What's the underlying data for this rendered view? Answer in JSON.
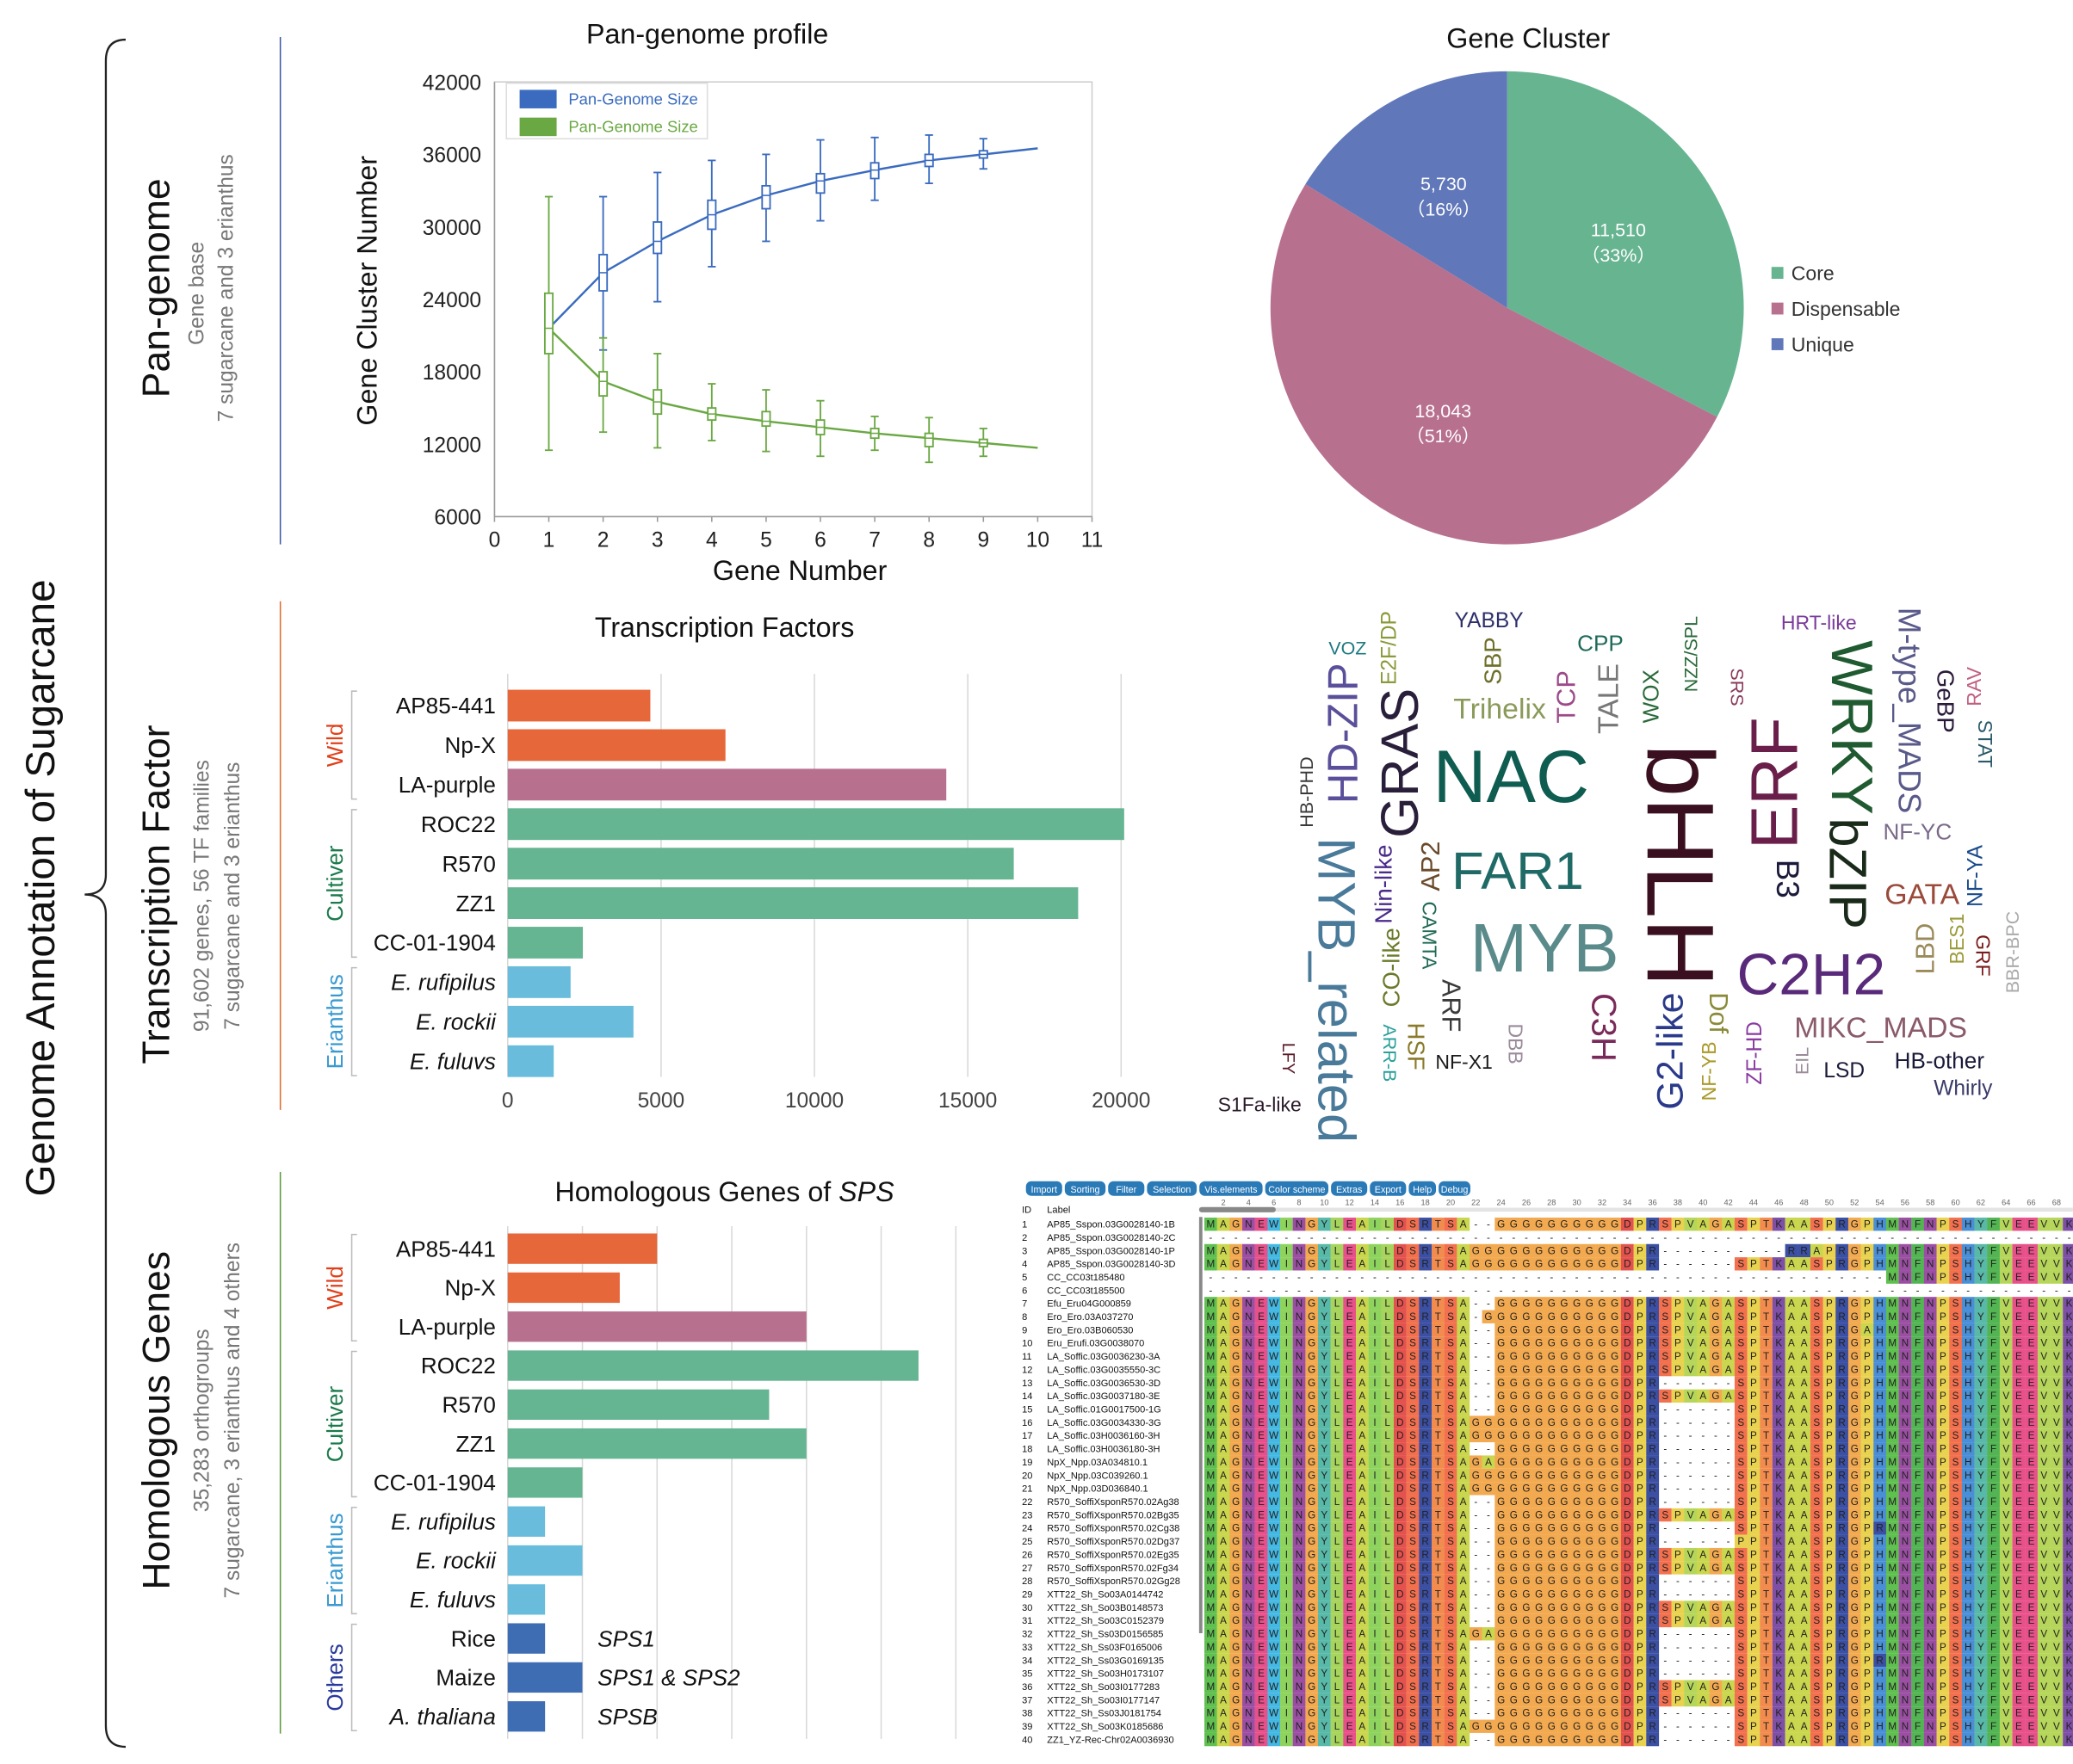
{
  "figure": {
    "main_title": "Genome Annotation of Sugarcane",
    "sections": [
      {
        "title": "Pan-genome",
        "sub1": "Gene base",
        "sub2": "7 sugarcane and 3 erianthus",
        "color": "#3b57a6"
      },
      {
        "title": "Transcription Factor",
        "sub1": "91,602 genes, 56 TF families",
        "sub2": "7 sugarcane and 3 erianthus",
        "color": "#e06a2c"
      },
      {
        "title": "Homologous Genes",
        "sub1": "35,283 orthogroups",
        "sub2": "7 sugarcane, 3 erianthus and 4 others",
        "color": "#5a9a3a"
      }
    ]
  },
  "chart_data": [
    {
      "id": "pan",
      "type": "line",
      "title": "Pan-genome profile",
      "xlabel": "Gene Number",
      "ylabel": "Gene Cluster Number",
      "xlim": [
        0,
        11
      ],
      "ylim": [
        6000,
        42000
      ],
      "xticks": [
        "0",
        "1",
        "2",
        "3",
        "4",
        "5",
        "6",
        "7",
        "8",
        "9",
        "10",
        "11"
      ],
      "yticks": [
        "6000",
        "12000",
        "18000",
        "24000",
        "30000",
        "36000",
        "42000"
      ],
      "legend": "top-left",
      "x": [
        1,
        2,
        3,
        4,
        5,
        6,
        7,
        8,
        9,
        10
      ],
      "series": [
        {
          "name": "Pan-Genome Size",
          "color": "#3a6bbf",
          "mean": [
            21600,
            26200,
            28800,
            31000,
            32600,
            33800,
            34700,
            35500,
            36000,
            36500
          ],
          "q1": [
            null,
            24700,
            27800,
            29800,
            31500,
            32800,
            34000,
            35000,
            35700,
            null
          ],
          "q3": [
            null,
            27700,
            30400,
            32200,
            33400,
            34400,
            35300,
            36000,
            36300,
            null
          ],
          "min": [
            null,
            19800,
            23800,
            26700,
            28800,
            30500,
            32200,
            33600,
            34800,
            null
          ],
          "max": [
            null,
            32500,
            34500,
            35500,
            36000,
            37200,
            37400,
            37600,
            37300,
            null
          ]
        },
        {
          "name": "Pan-Genome Size",
          "color": "#6aa843",
          "mean": [
            21600,
            17200,
            15500,
            14500,
            13900,
            13400,
            12900,
            12500,
            12100,
            11700
          ],
          "q1": [
            19500,
            16000,
            14500,
            14000,
            13500,
            12800,
            12500,
            11800,
            11800,
            null
          ],
          "q3": [
            24500,
            18000,
            16500,
            15000,
            14700,
            14000,
            13300,
            12900,
            12400,
            null
          ],
          "min": [
            11500,
            13000,
            11700,
            12300,
            11400,
            11000,
            11500,
            10500,
            11000,
            null
          ],
          "max": [
            32500,
            20800,
            19500,
            17000,
            16500,
            15600,
            14300,
            14200,
            13300,
            null
          ]
        }
      ]
    },
    {
      "id": "pie",
      "type": "pie",
      "title": "Gene Cluster",
      "legend": "right",
      "slices": [
        {
          "name": "Core",
          "value": 11510,
          "label": "11,510",
          "pct": "（33%）",
          "color": "#67b491"
        },
        {
          "name": "Dispensable",
          "value": 18043,
          "label": "18,043",
          "pct": "（51%）",
          "color": "#b8708f"
        },
        {
          "name": "Unique",
          "value": 5730,
          "label": "5,730",
          "pct": "（16%）",
          "color": "#6077b9"
        }
      ]
    },
    {
      "id": "tf",
      "type": "bar",
      "title": "Transcription Factors",
      "xlim": [
        0,
        20000
      ],
      "xticks": [
        "0",
        "5000",
        "10000",
        "15000",
        "20000"
      ],
      "groups": [
        {
          "name": "Wild",
          "color": "#e0401a",
          "count": 3
        },
        {
          "name": "Cultiver",
          "color": "#1a7a4a",
          "count": 4
        },
        {
          "name": "Erianthus",
          "color": "#3a9ad0",
          "count": 3
        }
      ],
      "categories": [
        "AP85-441",
        "Np-X",
        "LA-purple",
        "ROC22",
        "R570",
        "ZZ1",
        "CC-01-1904",
        "E. rufipilus",
        "E. rockii",
        "E. fuluvs"
      ],
      "italic": [
        false,
        false,
        false,
        false,
        false,
        false,
        false,
        true,
        true,
        true
      ],
      "values": [
        4650,
        7100,
        14300,
        20100,
        16500,
        18600,
        2450,
        2050,
        4100,
        1500
      ],
      "colors": [
        "#e6673a",
        "#e6673a",
        "#b8708f",
        "#66b592",
        "#66b592",
        "#66b592",
        "#66b592",
        "#69bcdc",
        "#69bcdc",
        "#69bcdc"
      ]
    },
    {
      "id": "sps",
      "type": "bar",
      "title_prefix": "Homologous Genes of ",
      "title_italic": "SPS",
      "xlim": [
        0,
        12
      ],
      "groups": [
        {
          "name": "Wild",
          "color": "#e0401a",
          "count": 3
        },
        {
          "name": "Cultiver",
          "color": "#1a7a4a",
          "count": 4
        },
        {
          "name": "Erianthus",
          "color": "#3a9ad0",
          "count": 3
        },
        {
          "name": "Others",
          "color": "#2a3a9a",
          "count": 3
        }
      ],
      "categories": [
        "AP85-441",
        "Np-X",
        "LA-purple",
        "ROC22",
        "R570",
        "ZZ1",
        "CC-01-1904",
        "E. rufipilus",
        "E. rockii",
        "E. fuluvs",
        "Rice",
        "Maize",
        "A. thaliana"
      ],
      "italic": [
        false,
        false,
        false,
        false,
        false,
        false,
        false,
        true,
        true,
        true,
        false,
        false,
        true
      ],
      "values": [
        4,
        3,
        8,
        11,
        7,
        8,
        2,
        1,
        2,
        1,
        1,
        2,
        1
      ],
      "colors": [
        "#e6673a",
        "#e6673a",
        "#b8708f",
        "#66b592",
        "#66b592",
        "#66b592",
        "#66b592",
        "#69bcdc",
        "#69bcdc",
        "#69bcdc",
        "#3f6db3",
        "#3f6db3",
        "#3f6db3"
      ],
      "annotations": [
        "",
        "",
        "",
        "",
        "",
        "",
        "",
        "",
        "",
        "",
        "SPS1",
        "SPS1 & SPS2",
        "SPSB"
      ]
    }
  ],
  "word_cloud": [
    {
      "t": "VOZ",
      "c": "#1e7a80"
    },
    {
      "t": "E2F/DP",
      "c": "#8a9a3a"
    },
    {
      "t": "HD-ZIP",
      "c": "#5a4f9a"
    },
    {
      "t": "YABBY",
      "c": "#2d2f6a"
    },
    {
      "t": "SBP",
      "c": "#6f6f2a"
    },
    {
      "t": "TCP",
      "c": "#9c4a8a"
    },
    {
      "t": "CPP",
      "c": "#1e6a5a"
    },
    {
      "t": "TALE",
      "c": "#777777"
    },
    {
      "t": "WOX",
      "c": "#2a6a3a"
    },
    {
      "t": "NZZ/SPL",
      "c": "#2a6a3a"
    },
    {
      "t": "SRS",
      "c": "#8a3a5a"
    },
    {
      "t": "M-type_MADS",
      "c": "#5a5a8a"
    },
    {
      "t": "HRT-like",
      "c": "#7a3a9a"
    },
    {
      "t": "GeBP",
      "c": "#2a1a3a"
    },
    {
      "t": "RAV",
      "c": "#c06080"
    },
    {
      "t": "STAT",
      "c": "#2a5a6a"
    },
    {
      "t": "NAC",
      "c": "#0f5c50"
    },
    {
      "t": "GRAS",
      "c": "#2a1f3a"
    },
    {
      "t": "WRKY",
      "c": "#1f5a30"
    },
    {
      "t": "HB-PHD",
      "c": "#3a3a3a"
    },
    {
      "t": "Nin-like",
      "c": "#4a2a8a"
    },
    {
      "t": "AP2",
      "c": "#6a4a2a"
    },
    {
      "t": "Trihelix",
      "c": "#8a9a5a"
    },
    {
      "t": "bHLH",
      "c": "#3a0f1f"
    },
    {
      "t": "ERF",
      "c": "#6a1f4a"
    },
    {
      "t": "FAR1",
      "c": "#1f6a66"
    },
    {
      "t": "B3",
      "c": "#1a1a3a"
    },
    {
      "t": "NF-YC",
      "c": "#7a6a8a"
    },
    {
      "t": "bZIP",
      "c": "#1a2a1a"
    },
    {
      "t": "LBD",
      "c": "#9a8a5a"
    },
    {
      "t": "NF-YA",
      "c": "#1a4a8a"
    },
    {
      "t": "BES1",
      "c": "#9a9a3a"
    },
    {
      "t": "GATA",
      "c": "#9a4a3a"
    },
    {
      "t": "MYB",
      "c": "#5a8a8a"
    },
    {
      "t": "MYB_related",
      "c": "#4a7a9a"
    },
    {
      "t": "CAMTA",
      "c": "#1f6a56"
    },
    {
      "t": "CO-like",
      "c": "#6a7a2a"
    },
    {
      "t": "C3H",
      "c": "#7a2a5a"
    },
    {
      "t": "G2-like",
      "c": "#2a3a8a"
    },
    {
      "t": "C2H2",
      "c": "#5a2a7a"
    },
    {
      "t": "GRF",
      "c": "#7a1a1a"
    },
    {
      "t": "BBR-BPC",
      "c": "#aaaaaa"
    },
    {
      "t": "Dof",
      "c": "#8a8a3a"
    },
    {
      "t": "ARF",
      "c": "#3a3a3a"
    },
    {
      "t": "HSF",
      "c": "#8a7a2a"
    },
    {
      "t": "MIKC_MADS",
      "c": "#8a5a6a"
    },
    {
      "t": "LFY",
      "c": "#5a1a2a"
    },
    {
      "t": "ARR-B",
      "c": "#2aa09a"
    },
    {
      "t": "DBB",
      "c": "#9a8a9a"
    },
    {
      "t": "NF-YB",
      "c": "#aa9a2a"
    },
    {
      "t": "ZF-HD",
      "c": "#8a3aa0"
    },
    {
      "t": "EIL",
      "c": "#9a8a9a"
    },
    {
      "t": "LSD",
      "c": "#1a1a3a"
    },
    {
      "t": "HB-other",
      "c": "#1a1a3a"
    },
    {
      "t": "NF-X1",
      "c": "#1a1a1a"
    },
    {
      "t": "S1Fa-like",
      "c": "#2a1a2a"
    },
    {
      "t": "Whirly",
      "c": "#3a3a6a"
    }
  ],
  "alignment": {
    "toolbar": [
      "Import",
      "Sorting",
      "Filter",
      "Selection",
      "Vis.elements",
      "Color scheme",
      "Extras",
      "Export",
      "Help",
      "Debug"
    ],
    "header_id": "ID",
    "header_label": "Label",
    "ruler": [
      "2",
      "4",
      "6",
      "8",
      "10",
      "12",
      "14",
      "16",
      "18",
      "20",
      "22",
      "24",
      "26",
      "28",
      "30",
      "32",
      "34",
      "36",
      "38",
      "40",
      "42",
      "44",
      "46",
      "48",
      "50",
      "52",
      "54",
      "56",
      "58",
      "60",
      "62",
      "64",
      "66",
      "68"
    ],
    "colors": {
      "M": "#5fbf4f",
      "A": "#c9d64e",
      "G": "#f2a94f",
      "N": "#9b4fa3",
      "E": "#e8508a",
      "W": "#45b8e2",
      "I": "#8fd35f",
      "Y": "#58b9a8",
      "L": "#a7d45c",
      "D": "#e4524e",
      "S": "#f2704e",
      "R": "#3b4fa3",
      "T": "#f28c4e",
      "P": "#e9d24f",
      "V": "#b5d65a",
      "K": "#7d4fa6",
      "H": "#4a8fd6",
      "F": "#52b452"
    },
    "rows": [
      {
        "id": "1",
        "label": "AP85_Sspon.03G0028140-1B",
        "seq": "MAGNEWINGYLEAILDSRTSA--GGGGGGGGGGDPRSPVAGASPTKAASPRGPHMNFNPSHYFVEEVVK"
      },
      {
        "id": "2",
        "label": "AP85_Sspon.03G0028140-2C",
        "seq": "---------------------------------------------------------------------"
      },
      {
        "id": "3",
        "label": "AP85_Sspon.03G0028140-1P",
        "seq": "MAGNEWINGYLEAILDSRTSAGGGGGGGGGGGGDPR----------RRAPRGPHMNFNPSHYFVEEVVK"
      },
      {
        "id": "4",
        "label": "AP85_Sspon.03G0028140-3D",
        "seq": "MAGNEWINGYLEAILDSRTSAGGGGGGGGGGGGDPR------SPTKAASPRGPHMNFNPSHYFVEEVVK"
      },
      {
        "id": "5",
        "label": "CC_CC03t185480",
        "seq": "------------------------------------------------------MNFNPSHYFVEEVVK"
      },
      {
        "id": "6",
        "label": "CC_CC03t185500",
        "seq": "---------------------------------------------------------------------"
      },
      {
        "id": "7",
        "label": "Efu_Eru04G000859",
        "seq": "MAGNEWINGYLEAILDSRTSA--GGGGGGGGGGDPRSPVAGASPTKAASPRGPHMNFNPSHYFVEEVVK"
      },
      {
        "id": "8",
        "label": "Ero_Ero.03A037270",
        "seq": "MAGNEWINGYLEAILDSRTSA-GGGGGGGGGGGDPRSPVAGASPTKAASPRGPHMNFNPSHYFVEEVVK"
      },
      {
        "id": "9",
        "label": "Ero_Ero.03B060530",
        "seq": "MAGNEWINGYLEAILDSRTSA--GGGGGGGGGGDPRSPVAGASPTKAASPRGAHMNFNPSHYFVEEVVK"
      },
      {
        "id": "10",
        "label": "Eru_Erufi.03G0038070",
        "seq": "MAGNEWINGYLEAILDSRTSA--GGGGGGGGGGDPRSPVAGASPTKAASPRGPHMNFNPSHYFVEEVVK"
      },
      {
        "id": "11",
        "label": "LA_Soffic.03G0036230-3A",
        "seq": "MAGNEWINGYLEAILDSRTSA--GGGGGGGGGGDPRSPVAGASPTKAASPRGPHMNFNPSHYFVEEVVK"
      },
      {
        "id": "12",
        "label": "LA_Soffic.03G0035550-3C",
        "seq": "MAGNEWINGYLEAILDSRTSA--GGGGGGGGGGDPRSPVAGASPTKAASPRGPHMNFNPSHYFVEEVVK"
      },
      {
        "id": "13",
        "label": "LA_Soffic.03G0036530-3D",
        "seq": "MAGNEWINGYLEAILDSRTSA--GGGGGGGGGGDPR------SPTKAASPRGPHMNFNPSHYFVEEVVK"
      },
      {
        "id": "14",
        "label": "LA_Soffic.03G0037180-3E",
        "seq": "MAGNEWINGYLEAILDSRTSA--GGGGGGGGGGDPRSPVAGASPTKAASPRGPHMNFNPSHYFVEEVVK"
      },
      {
        "id": "15",
        "label": "LA_Soffic.01G0017500-1G",
        "seq": "MAGNEWINGYLEAILDSRTSA--GGGGGGGGGGDPR------SPTKAASPRGPHMNFNPSHYFVEEVVK"
      },
      {
        "id": "16",
        "label": "LA_Soffic.03G0034330-3G",
        "seq": "MAGNEWINGYLEAILDSRTSAGGGGGGGGGGGGDPR------SPTKAASPRGPHMNFNPSHYFVEEVVK"
      },
      {
        "id": "17",
        "label": "LA_Soffic.03H0036160-3H",
        "seq": "MAGNEWINGYLEAILDSRTSAGGGGGGGGGGGGDPR------SPTKAASPRGPHMNFNPSHYFVEEVVK"
      },
      {
        "id": "18",
        "label": "LA_Soffic.03H0036180-3H",
        "seq": "MAGNEWINGYLEAILDSRTSA--GGGGGGGGGGDPR------SPTKAASPRGPHMNFNPSHYFVEEVVK"
      },
      {
        "id": "19",
        "label": "NpX_Npp.03A034810.1",
        "seq": "MAGNEWINGYLEAILDSRTSAGAGGGGGGGGGGDPR------SPTKAASPRGPHMNFNPSHYFVEEVVK"
      },
      {
        "id": "20",
        "label": "NpX_Npp.03C039260.1",
        "seq": "MAGNEWINGYLEAILDSRTSAGGGGGGGGGGGGDPR------SPTKAASPRGPHMNFNPSHYFVEEVVK"
      },
      {
        "id": "21",
        "label": "NpX_Npp.03D036840.1",
        "seq": "MAGNEWINGYLEAILDSRTSAGGGGGGGGGGGGDPR------SPTKAASPRGPHMNFNPSHYFVEEVVK"
      },
      {
        "id": "22",
        "label": "R570_SoffiXsponR570.02Ag38",
        "seq": "MAGNEWINGYLEAILDSRTSA--GGGGGGGGGGDPR------SPTKAASPRGPHMNFNPSHYFVEEVVK"
      },
      {
        "id": "23",
        "label": "R570_SoffiXsponR570.02Bg35",
        "seq": "MAGNEWINGYLEAILDSRTSA--GGGGGGGGGGDPRSPVAGASPTKAASPRGPHMNFNPSHYFVEEVVK"
      },
      {
        "id": "24",
        "label": "R570_SoffiXsponR570.02Cg38",
        "seq": "MAGNEWINGYLEAILDSRTSA--GGGGGGGGGGDPR------SPTKAASPRGPRMNFNPSHYFVEEVVK"
      },
      {
        "id": "25",
        "label": "R570_SoffiXsponR570.02Dg37",
        "seq": "MAGNEWINGYLEAILDSRTSA--GGGGGGGGGGDPR------PPTKAASPRGPHMNFNPSHYFVEEVVK"
      },
      {
        "id": "26",
        "label": "R570_SoffiXsponR570.02Eg35",
        "seq": "MAGNEWINGYLEAILDSRTSA--GGGGGGGGGGDPRSPVAGASPTKAASPRGPHMNFNPSHYFVEEVVK"
      },
      {
        "id": "27",
        "label": "R570_SoffiXsponR570.02Fg34",
        "seq": "MAGNEWINGYLEAILDSRTSA--GGGGGGGGGGDPRSPVAGASPTKAASPRGPHMNFNPSHYFVEEVVK"
      },
      {
        "id": "28",
        "label": "R570_SoffiXsponR570.02Gg28",
        "seq": "MAGNEWINGYLEAILDSRTSA--GGGGGGGGGGDPR------SPTKAASPRGPHMNFNPSHYFVEEVVK"
      },
      {
        "id": "29",
        "label": "XTT22_Sh_So03A0144742",
        "seq": "MAGNEWINGYLEAILDSRTSA--GGGGGGGGGGDPR------SPTKAASPRGPHMNFNPSHYFVEEVVK"
      },
      {
        "id": "30",
        "label": "XTT22_Sh_So03B0148573",
        "seq": "MAGNEWINGYLEAILDSRTSA--GGGGGGGGGGDPRSPVAGASPTKAASPRGPHMNFNPSHYFVEEVVK"
      },
      {
        "id": "31",
        "label": "XTT22_Sh_So03C0152379",
        "seq": "MAGNEWINGYLEAILDSRTSA--GGGGGGGGGGDPRSPVAGASPTKAASPRGPHMNFNPSHYFVEEVVK"
      },
      {
        "id": "32",
        "label": "XTT22_Sh_Ss03D0156585",
        "seq": "MAGNEWINGYLEAILDSRTSAGAGGGGGGGGGGDPR------SPTKAASPRGPHMNFNPSHYFVEEVVK"
      },
      {
        "id": "33",
        "label": "XTT22_Sh_Ss03F0165006",
        "seq": "MAGNEWINGYLEAILDSRTSA--GGGGGGGGGGDPR------SPTKAASPRGPHMNFNPSHYFVEEVVK"
      },
      {
        "id": "34",
        "label": "XTT22_Sh_Ss03G0169135",
        "seq": "MAGNEWINGYLEAILDSRTSA--GGGGGGGGGGDPR------SPTKAASPRGPRMNFNPSHYFVEEVVK"
      },
      {
        "id": "35",
        "label": "XTT22_Sh_So03H0173107",
        "seq": "MAGNEWINGYLEAILDSRTSA--GGGGGGGGGGDPR------SPTKAASPRGPHMNFNPSHYFVEEVVK"
      },
      {
        "id": "36",
        "label": "XTT22_Sh_So03I0177283",
        "seq": "MAGNEWINGYLEAILDSRTSA--GGGGGGGGGGDPRSPVAGASPTKAASPRGPHMNFNPSHYFVEEVVK"
      },
      {
        "id": "37",
        "label": "XTT22_Sh_So03I0177147",
        "seq": "MAGNEWINGYLEAILDSRTSA--GGGGGGGGGGDPRSPVAGASPTKAASPRGPHMNFNPSHYFVEEVVK"
      },
      {
        "id": "38",
        "label": "XTT22_Sh_Ss03J0181754",
        "seq": "MAGNEWINGYLEAILDSRTSA--GGGGGGGGGGDPR------SPTKAASPRGPHMNFNPSHYFVEEVVK"
      },
      {
        "id": "39",
        "label": "XTT22_Sh_So03K0185686",
        "seq": "MAGNEWINGYLEAILDSRTSAGGGGGGGGGGGGDPR------SPTKAASPRGPHMNFNPSHYFVEEVVK"
      },
      {
        "id": "40",
        "label": "ZZ1_YZ-Rec-Chr02A0036930",
        "seq": "MAGNEWINGYLEAILDSRTSA--GGGGGGGGGGDPR------SPTKAASPRGPHMNFNPSHYFVEEVVK"
      }
    ]
  }
}
